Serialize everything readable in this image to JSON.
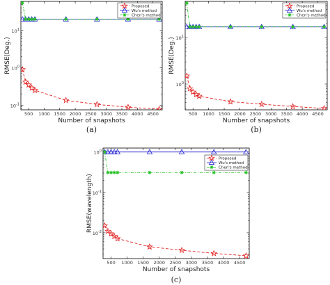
{
  "chart_data": [
    {
      "type": "line",
      "caption": "(a)",
      "xlabel": "Number of snapshots",
      "ylabel": "RMSE(Deg.)",
      "y_scale": "log",
      "xlim": [
        250,
        4800
      ],
      "ylim": [
        0.075,
        60
      ],
      "x_ticks": [
        500,
        1000,
        1500,
        2000,
        2500,
        3000,
        3500,
        4000,
        4500
      ],
      "y_ticks": [
        {
          "value": 0.1,
          "label": "10^-1"
        },
        {
          "value": 1,
          "label": "10^0"
        },
        {
          "value": 10,
          "label": "10^1"
        }
      ],
      "legend_position": "top-right",
      "series": [
        {
          "name": "Proposed",
          "color": "#e02020",
          "style": "dashed",
          "marker": "star",
          "x": [
            300,
            400,
            500,
            600,
            700,
            1700,
            2700,
            3700,
            4700
          ],
          "y": [
            0.9,
            0.42,
            0.35,
            0.29,
            0.25,
            0.135,
            0.105,
            0.088,
            0.078
          ]
        },
        {
          "name": "Wu's method",
          "color": "#2020d0",
          "style": "solid",
          "marker": "triangle",
          "x": [
            300,
            400,
            500,
            600,
            700,
            1700,
            2700,
            3700,
            4700
          ],
          "y": [
            20,
            20,
            20,
            20,
            20,
            20,
            20,
            20,
            20
          ]
        },
        {
          "name": "Chen's method",
          "color": "#20c020",
          "style": "dashdot",
          "marker": "asterisk",
          "x": [
            300,
            400,
            500,
            600,
            700,
            1700,
            2700,
            3700,
            4700
          ],
          "y": [
            55,
            20,
            20,
            20,
            20,
            20,
            20,
            20,
            20
          ]
        }
      ]
    },
    {
      "type": "line",
      "caption": "(b)",
      "xlabel": "Number of snapshots",
      "ylabel": "RMSE(Deg.)",
      "y_scale": "log",
      "xlim": [
        250,
        4800
      ],
      "ylim": [
        0.28,
        60
      ],
      "x_ticks": [
        500,
        1000,
        1500,
        2000,
        2500,
        3000,
        3500,
        4000,
        4500
      ],
      "y_ticks": [
        {
          "value": 1,
          "label": "10^0"
        },
        {
          "value": 10,
          "label": "10^1"
        }
      ],
      "legend_position": "top-right",
      "series": [
        {
          "name": "Proposed",
          "color": "#e02020",
          "style": "dashed",
          "marker": "star",
          "x": [
            300,
            400,
            500,
            600,
            700,
            1700,
            2700,
            3700,
            4700
          ],
          "y": [
            1.5,
            0.8,
            0.68,
            0.6,
            0.55,
            0.42,
            0.37,
            0.33,
            0.3
          ]
        },
        {
          "name": "Wu's method",
          "color": "#2020d0",
          "style": "solid",
          "marker": "triangle",
          "x": [
            300,
            400,
            500,
            600,
            700,
            1700,
            2700,
            3700,
            4700
          ],
          "y": [
            17,
            17,
            17,
            17,
            17,
            17,
            17,
            17,
            17
          ]
        },
        {
          "name": "Chen's method",
          "color": "#20c020",
          "style": "dashdot",
          "marker": "asterisk",
          "x": [
            300,
            400,
            500,
            600,
            700,
            1700,
            2700,
            3700,
            4700
          ],
          "y": [
            55,
            17,
            17,
            17,
            17,
            17,
            17,
            17,
            17
          ]
        }
      ]
    },
    {
      "type": "line",
      "caption": "(c)",
      "xlabel": "Number of snapshots",
      "ylabel": "RMSE(wavelength)",
      "y_scale": "log",
      "xlim": [
        250,
        4800
      ],
      "ylim": [
        0.0023,
        1.25
      ],
      "x_ticks": [
        500,
        1000,
        1500,
        2000,
        2500,
        3000,
        3500,
        4000,
        4500
      ],
      "y_ticks": [
        {
          "value": 0.01,
          "label": "10^-2"
        },
        {
          "value": 0.1,
          "label": "10^-1"
        },
        {
          "value": 1,
          "label": "10^0"
        }
      ],
      "legend_position": "top-right",
      "series": [
        {
          "name": "Proposed",
          "color": "#e02020",
          "style": "dashed",
          "marker": "star",
          "x": [
            300,
            400,
            500,
            600,
            700,
            1700,
            2700,
            3700,
            4700
          ],
          "y": [
            0.015,
            0.011,
            0.0095,
            0.0082,
            0.0072,
            0.0045,
            0.0037,
            0.0031,
            0.0027
          ]
        },
        {
          "name": "Wu's method",
          "color": "#2020d0",
          "style": "solid",
          "marker": "triangle",
          "x": [
            300,
            400,
            500,
            600,
            700,
            1700,
            2700,
            3700,
            4700
          ],
          "y": [
            1,
            1,
            1,
            1,
            1,
            1,
            1,
            1,
            1
          ]
        },
        {
          "name": "Chen's method",
          "color": "#20c020",
          "style": "dashdot",
          "marker": "asterisk",
          "x": [
            300,
            400,
            500,
            600,
            700,
            1700,
            2700,
            3700,
            4700
          ],
          "y": [
            1,
            0.31,
            0.31,
            0.31,
            0.31,
            0.31,
            0.31,
            0.31,
            0.31
          ]
        }
      ]
    }
  ]
}
